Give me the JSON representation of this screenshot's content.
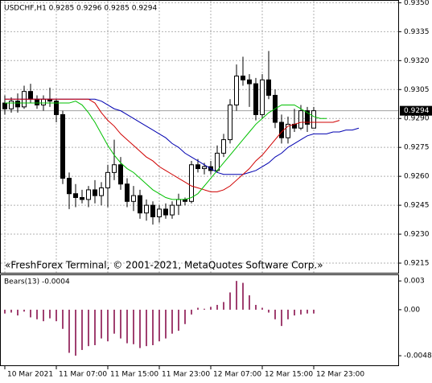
{
  "chart_data": [
    {
      "type": "candlestick",
      "title": "USDCHF,H1  0.9285 0.9296 0.9285 0.9294",
      "watermark": "«FreshForex Terminal, © 2001-2021, MetaQuotes Software Corp.»",
      "categories": [
        "10 Mar 2021",
        null,
        null,
        null,
        null,
        null,
        null,
        null,
        "11 Mar 07:00",
        null,
        null,
        null,
        null,
        null,
        null,
        null,
        "11 Mar 15:00",
        null,
        null,
        null,
        null,
        null,
        null,
        null,
        "11 Mar 23:00",
        null,
        null,
        null,
        null,
        null,
        null,
        null,
        "12 Mar 07:00",
        null,
        null,
        null,
        null,
        null,
        null,
        null,
        "12 Mar 15:00",
        null,
        null,
        null,
        null,
        null,
        null,
        null,
        "12 Mar 23:00",
        null,
        null,
        null,
        null,
        null,
        null,
        null
      ],
      "open": [
        0.9298,
        0.9295,
        0.9299,
        0.9296,
        0.9304,
        0.93,
        0.9297,
        0.93,
        0.9299,
        0.9292,
        0.9259,
        0.9251,
        0.9249,
        0.9248,
        0.9253,
        0.925,
        0.9254,
        0.9262,
        0.9266,
        0.9256,
        0.9247,
        0.925,
        0.9241,
        0.9245,
        0.9239,
        0.9243,
        0.924,
        0.9245,
        0.9248,
        0.9247,
        0.9266,
        0.9264,
        0.9265,
        0.9263,
        0.9272,
        0.9279,
        0.9297,
        0.9312,
        0.931,
        0.9308,
        0.9292,
        0.931,
        0.9302,
        0.9288,
        0.928,
        0.9287,
        0.9285,
        0.9294,
        0.9285,
        null,
        null,
        null,
        null,
        null,
        null,
        null
      ],
      "high": [
        0.9302,
        0.9301,
        0.9303,
        0.9307,
        0.9308,
        0.9302,
        0.9302,
        0.9306,
        0.93,
        0.9294,
        0.9262,
        0.9256,
        0.9253,
        0.9255,
        0.9258,
        0.9257,
        0.9266,
        0.9279,
        0.927,
        0.9259,
        0.9255,
        0.9253,
        0.9248,
        0.9247,
        0.9245,
        0.9246,
        0.9247,
        0.9251,
        0.9249,
        0.9268,
        0.9269,
        0.9267,
        0.9268,
        0.9276,
        0.9282,
        0.93,
        0.9318,
        0.9322,
        0.9313,
        0.9311,
        0.9313,
        0.9325,
        0.9305,
        0.9292,
        0.9291,
        0.9295,
        0.9297,
        0.9296,
        0.9296,
        null,
        null,
        null,
        null,
        null,
        null,
        null
      ],
      "low": [
        0.9292,
        0.9293,
        0.9293,
        0.9295,
        0.9298,
        0.9295,
        0.9294,
        0.9296,
        0.9288,
        0.9256,
        0.9243,
        0.9244,
        0.9246,
        0.9244,
        0.9246,
        0.9245,
        0.9244,
        0.9258,
        0.9253,
        0.9244,
        0.9242,
        0.9238,
        0.9237,
        0.9235,
        0.9236,
        0.9238,
        0.9238,
        0.924,
        0.9245,
        0.9246,
        0.9262,
        0.9261,
        0.9261,
        0.9262,
        0.927,
        0.9277,
        0.9294,
        0.9307,
        0.9296,
        0.9289,
        0.929,
        0.93,
        0.9285,
        0.9277,
        0.9277,
        0.9283,
        0.9284,
        0.9283,
        0.9285,
        null,
        null,
        null,
        null,
        null,
        null,
        null
      ],
      "close": [
        0.9295,
        0.9299,
        0.9296,
        0.9304,
        0.93,
        0.9297,
        0.93,
        0.9299,
        0.9292,
        0.9259,
        0.9251,
        0.9249,
        0.9248,
        0.9253,
        0.925,
        0.9254,
        0.9262,
        0.9266,
        0.9256,
        0.9247,
        0.925,
        0.9241,
        0.9245,
        0.9239,
        0.9243,
        0.924,
        0.9245,
        0.9248,
        0.9247,
        0.9266,
        0.9264,
        0.9265,
        0.9263,
        0.9272,
        0.9279,
        0.9297,
        0.9312,
        0.931,
        0.9308,
        0.9292,
        0.931,
        0.9302,
        0.9288,
        0.928,
        0.9287,
        0.9285,
        0.9294,
        0.9287,
        0.9294,
        null,
        null,
        null,
        null,
        null,
        null,
        null
      ],
      "series": [
        {
          "color": "#0000b0",
          "values": [
            0.93,
            0.93,
            0.93,
            0.93,
            0.93,
            0.93,
            0.93,
            0.93,
            0.93,
            0.93,
            0.93,
            0.93,
            0.93,
            0.93,
            0.93,
            0.9299,
            0.9297,
            0.9295,
            0.9294,
            0.9292,
            0.929,
            0.9288,
            0.9286,
            0.9284,
            0.9282,
            0.928,
            0.9277,
            0.9275,
            0.9272,
            0.927,
            0.9268,
            0.9266,
            0.9264,
            0.9262,
            0.9261,
            0.9261,
            0.9261,
            0.9261,
            0.9262,
            0.9263,
            0.9265,
            0.9267,
            0.927,
            0.9272,
            0.9275,
            0.9277,
            0.9279,
            0.9281,
            0.9282,
            0.9282,
            0.9282,
            0.9283,
            0.9283,
            0.9284,
            0.9284,
            0.9285
          ]
        },
        {
          "color": "#d00000",
          "values": [
            0.93,
            0.93,
            0.93,
            0.93,
            0.93,
            0.93,
            0.93,
            0.93,
            0.93,
            0.93,
            0.93,
            0.93,
            0.93,
            0.93,
            0.9298,
            0.9293,
            0.9289,
            0.9286,
            0.9282,
            0.9279,
            0.9276,
            0.9273,
            0.927,
            0.9268,
            0.9265,
            0.9263,
            0.9261,
            0.9259,
            0.9257,
            0.9255,
            0.9254,
            0.9253,
            0.9252,
            0.9252,
            0.9253,
            0.9255,
            0.9258,
            0.9261,
            0.9264,
            0.9268,
            0.9271,
            0.9275,
            0.9279,
            0.9283,
            0.9286,
            0.9287,
            0.9288,
            0.9288,
            0.9288,
            0.9288,
            0.9288,
            0.9288,
            0.9289,
            null,
            null,
            null
          ]
        },
        {
          "color": "#00c000",
          "values": [
            0.9298,
            0.9298,
            0.9298,
            0.9298,
            0.9298,
            0.9298,
            0.9298,
            0.9298,
            0.9298,
            0.9298,
            0.9298,
            0.9299,
            0.9297,
            0.9293,
            0.9288,
            0.9282,
            0.9276,
            0.9271,
            0.9267,
            0.9264,
            0.9262,
            0.9259,
            0.9256,
            0.9253,
            0.9251,
            0.9249,
            0.9248,
            0.9248,
            0.9248,
            0.9249,
            0.9251,
            0.9255,
            0.9259,
            0.9263,
            0.9267,
            0.9271,
            0.9275,
            0.9279,
            0.9283,
            0.9287,
            0.929,
            0.9293,
            0.9295,
            0.9297,
            0.9297,
            0.9297,
            0.9295,
            0.9293,
            0.9291,
            0.929,
            0.929,
            null,
            null,
            null,
            null,
            null
          ]
        }
      ],
      "price": 0.9294,
      "ylim": [
        0.921,
        0.9351
      ],
      "yticks": [
        {
          "value": 0.935,
          "label": "0.9350"
        },
        0.9335,
        {
          "value": 0.932,
          "label": "0.9320"
        },
        0.9305,
        {
          "value": 0.929,
          "label": "0.9290"
        },
        0.9275,
        {
          "value": 0.926,
          "label": "0.9260"
        },
        0.9245,
        {
          "value": 0.923,
          "label": "0.9230"
        },
        0.9215
      ],
      "grid": true
    },
    {
      "type": "histogram",
      "title": "Bears(13) -0.0004",
      "color": "#a04070",
      "values": [
        -0.0004,
        -0.0003,
        -0.0006,
        -0.0002,
        -0.0008,
        -0.001,
        -0.0012,
        -0.0009,
        -0.0012,
        -0.002,
        -0.0045,
        -0.0048,
        -0.0042,
        -0.0038,
        -0.0037,
        -0.003,
        -0.0033,
        -0.0025,
        -0.003,
        -0.0035,
        -0.0036,
        -0.004,
        -0.0038,
        -0.0037,
        -0.0033,
        -0.003,
        -0.0025,
        -0.0022,
        -0.0015,
        -0.0005,
        0.0002,
        0.0001,
        0.0003,
        0.0005,
        0.0008,
        0.0018,
        0.003,
        0.0028,
        0.0015,
        0.0005,
        0.0002,
        -0.0003,
        -0.001,
        -0.0017,
        -0.001,
        -0.0006,
        -0.0005,
        -0.0004,
        -0.0004,
        null,
        null,
        null,
        null,
        null,
        null,
        null
      ],
      "ylim": [
        -0.0058,
        0.0036
      ],
      "yticks": [
        0.003,
        {
          "value": 0,
          "label": "0.00"
        },
        -0.0048
      ],
      "grid": false
    }
  ]
}
